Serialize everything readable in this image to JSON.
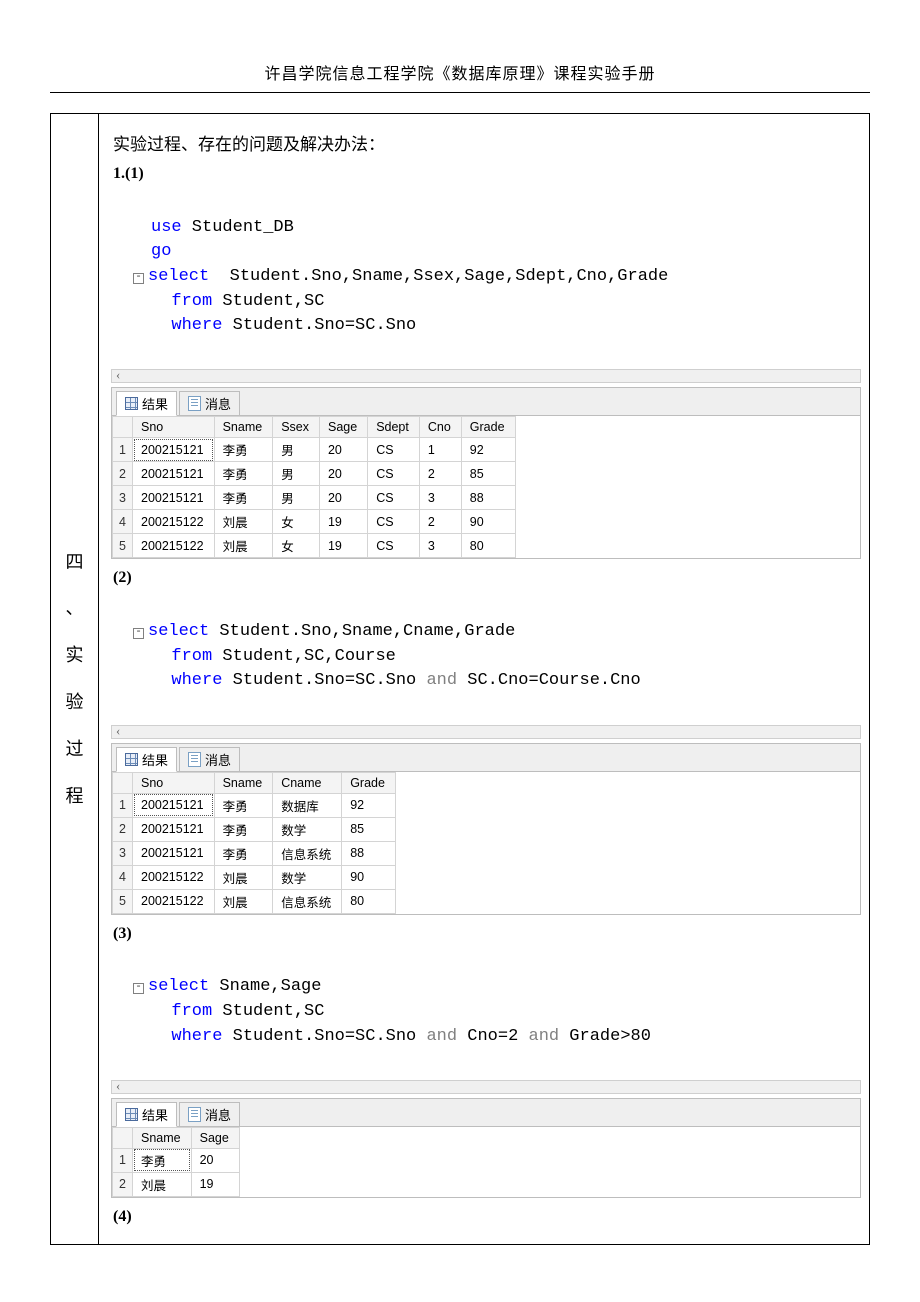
{
  "page_header": "许昌学院信息工程学院《数据库原理》课程实验手册",
  "side_label_chars": [
    "四",
    "、",
    "实",
    "验",
    "过",
    "程"
  ],
  "section_title": "实验过程、存在的问题及解决办法：",
  "labels": {
    "q1": "1.(1)",
    "q2": "(2)",
    "q3": "(3)",
    "q4": "(4)"
  },
  "tabs": {
    "results": "结果",
    "messages": "消息"
  },
  "sql1": {
    "l1_kw": "use",
    "l1_rest": " Student_DB",
    "l2": "go",
    "l3_kw": "select",
    "l3_rest": "  Student.Sno,Sname,Ssex,Sage,Sdept,Cno,Grade",
    "l4_kw": "from",
    "l4_rest": " Student,SC",
    "l5_kw": "where",
    "l5_rest": " Student.Sno=SC.Sno"
  },
  "grid1": {
    "columns": [
      "Sno",
      "Sname",
      "Ssex",
      "Sage",
      "Sdept",
      "Cno",
      "Grade"
    ],
    "rows": [
      [
        "200215121",
        "李勇",
        "男",
        "20",
        "CS",
        "1",
        "92"
      ],
      [
        "200215121",
        "李勇",
        "男",
        "20",
        "CS",
        "2",
        "85"
      ],
      [
        "200215121",
        "李勇",
        "男",
        "20",
        "CS",
        "3",
        "88"
      ],
      [
        "200215122",
        "刘晨",
        "女",
        "19",
        "CS",
        "2",
        "90"
      ],
      [
        "200215122",
        "刘晨",
        "女",
        "19",
        "CS",
        "3",
        "80"
      ]
    ]
  },
  "sql2": {
    "l1_kw": "select",
    "l1_rest": " Student.Sno,Sname,Cname,Grade",
    "l2_kw": "from",
    "l2_rest": " Student,SC,Course",
    "l3_kw1": "where",
    "l3_mid": " Student.Sno=SC.Sno ",
    "l3_kw2": "and",
    "l3_rest": " SC.Cno=Course.Cno"
  },
  "grid2": {
    "columns": [
      "Sno",
      "Sname",
      "Cname",
      "Grade"
    ],
    "rows": [
      [
        "200215121",
        "李勇",
        "数据库",
        "92"
      ],
      [
        "200215121",
        "李勇",
        "数学",
        "85"
      ],
      [
        "200215121",
        "李勇",
        "信息系统",
        "88"
      ],
      [
        "200215122",
        "刘晨",
        "数学",
        "90"
      ],
      [
        "200215122",
        "刘晨",
        "信息系统",
        "80"
      ]
    ]
  },
  "sql3": {
    "l1_kw": "select",
    "l1_rest": " Sname,Sage",
    "l2_kw": "from",
    "l2_rest": " Student,SC",
    "l3_kw1": "where",
    "l3_m1": " Student.Sno=SC.Sno ",
    "l3_kw2": "and",
    "l3_m2": " Cno=2 ",
    "l3_kw3": "and",
    "l3_m3": " Grade>80"
  },
  "grid3": {
    "columns": [
      "Sname",
      "Sage"
    ],
    "rows": [
      [
        "李勇",
        "20"
      ],
      [
        "刘晨",
        "19"
      ]
    ]
  },
  "style": {
    "keyword_color": "#0000ff",
    "text_color": "#000000",
    "gray_color": "#808080",
    "grid_border": "#d4d4d4",
    "panel_border": "#bdbdbd",
    "header_bg": "#f4f4f4",
    "font_code": "Consolas",
    "font_grid": "Microsoft YaHei",
    "code_fontsize_pt": 13,
    "grid_fontsize_pt": 9
  }
}
